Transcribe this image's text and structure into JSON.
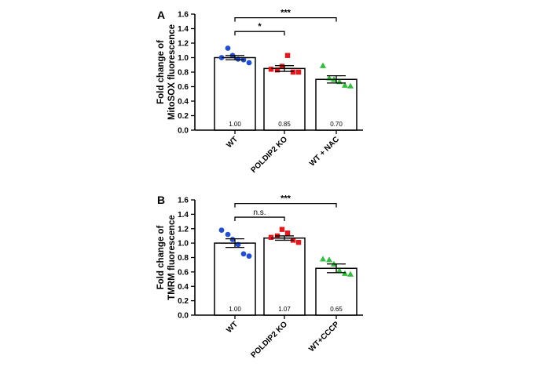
{
  "colors": {
    "wt": "#1f4fd8",
    "ko": "#e8151b",
    "treat": "#2fbf3a",
    "axis": "#000000",
    "bar_fill": "#ffffff"
  },
  "chart_data": [
    {
      "type": "bar",
      "panel": "A",
      "ylabel_lines": [
        "Fold change of",
        "MitoSOX fluorescence"
      ],
      "ylim": [
        0,
        1.6
      ],
      "yticks": [
        "0.0",
        "0.2",
        "0.4",
        "0.6",
        "0.8",
        "1.0",
        "1.2",
        "1.4",
        "1.6"
      ],
      "categories": [
        "WT",
        "POLDIP2 KO",
        "WT + NAC"
      ],
      "values": [
        1.0,
        0.85,
        0.7
      ],
      "value_labels": [
        "1.00",
        "0.85",
        "0.70"
      ],
      "sem": [
        0.03,
        0.04,
        0.05
      ],
      "markers": [
        "circle",
        "square",
        "triangle"
      ],
      "points": [
        [
          1.0,
          1.13,
          1.03,
          0.98,
          0.97,
          0.93
        ],
        [
          0.84,
          0.83,
          0.88,
          1.03,
          0.8,
          0.8
        ],
        [
          0.89,
          0.72,
          0.7,
          0.67,
          0.62,
          0.61
        ]
      ],
      "significance": [
        {
          "from": 0,
          "to": 1,
          "y": 1.36,
          "label": "*"
        },
        {
          "from": 0,
          "to": 2,
          "y": 1.55,
          "label": "***"
        }
      ]
    },
    {
      "type": "bar",
      "panel": "B",
      "ylabel_lines": [
        "Fold change of",
        "TMRM fluorescence"
      ],
      "ylim": [
        0,
        1.6
      ],
      "yticks": [
        "0.0",
        "0.2",
        "0.4",
        "0.6",
        "0.8",
        "1.0",
        "1.2",
        "1.4",
        "1.6"
      ],
      "categories": [
        "WT",
        "POLDIP2 KO",
        "WT+CCCP"
      ],
      "values": [
        1.0,
        1.07,
        0.65
      ],
      "value_labels": [
        "1.00",
        "1.07",
        "0.65"
      ],
      "sem": [
        0.06,
        0.03,
        0.06
      ],
      "markers": [
        "circle",
        "square",
        "triangle"
      ],
      "points": [
        [
          1.18,
          1.12,
          1.05,
          0.98,
          0.85,
          0.82
        ],
        [
          1.08,
          1.1,
          1.19,
          1.14,
          1.04,
          1.01
        ],
        [
          0.78,
          0.77,
          0.71,
          0.62,
          0.58,
          0.57
        ]
      ],
      "significance": [
        {
          "from": 0,
          "to": 1,
          "y": 1.36,
          "label": "n.s."
        },
        {
          "from": 0,
          "to": 2,
          "y": 1.55,
          "label": "***"
        }
      ]
    }
  ]
}
